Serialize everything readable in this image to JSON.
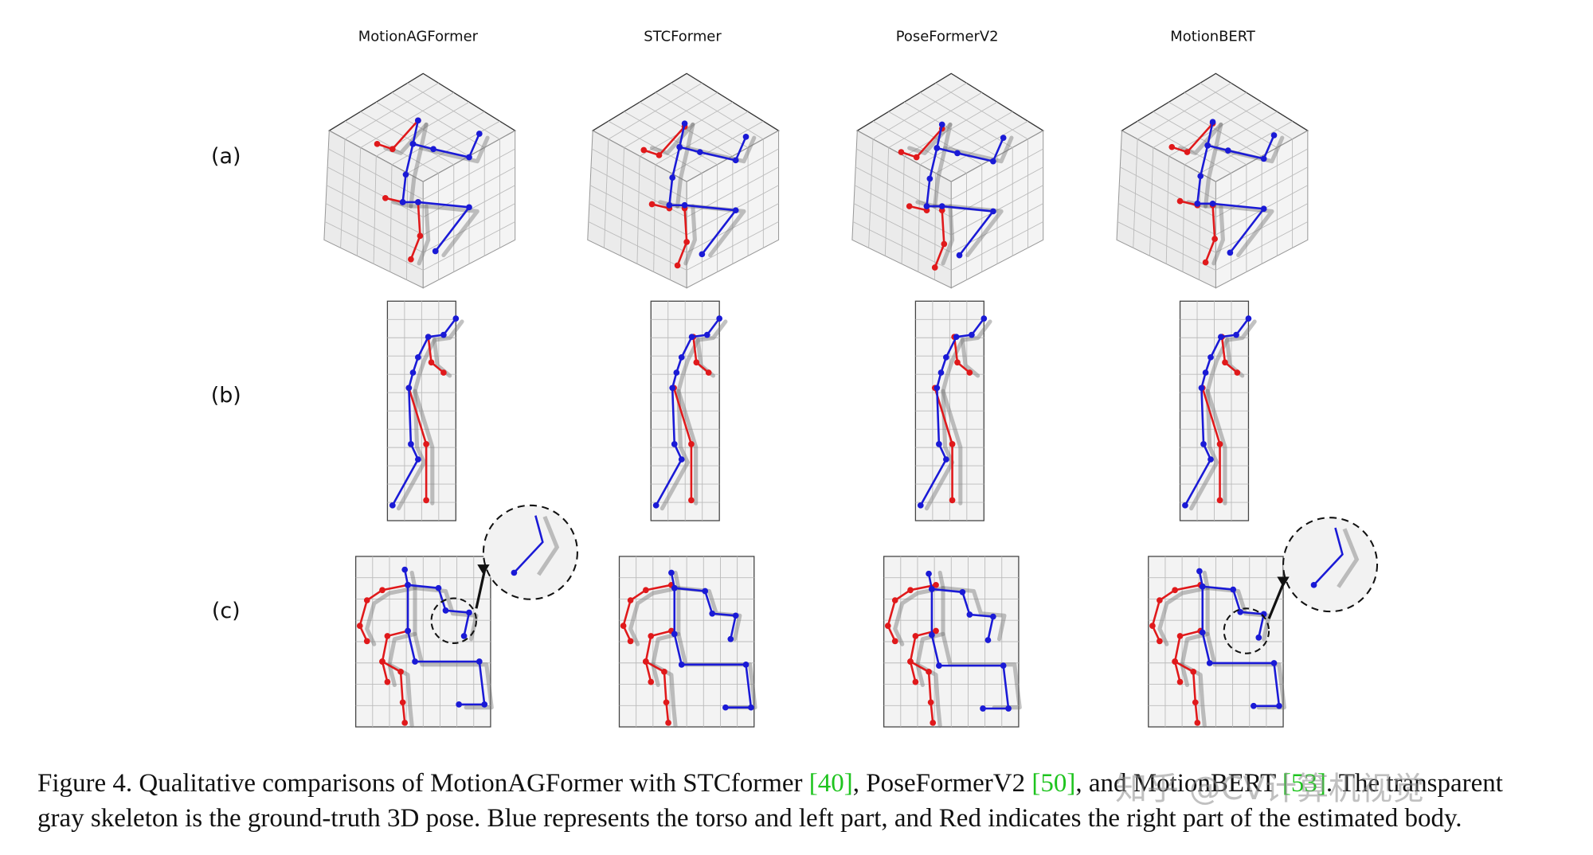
{
  "figure": {
    "columns": [
      "MotionAGFormer",
      "STCFormer",
      "PoseFormerV2",
      "MotionBERT"
    ],
    "rows": [
      "(a)",
      "(b)",
      "(c)"
    ],
    "caption": {
      "line1": [
        "Figure 4. Qualitative comparisons of MotionAGFormer with STCformer ",
        "[40]",
        ", PoseFormerV2 ",
        "[50]",
        ", and MotionBERT ",
        "[53]",
        ". The transparent"
      ],
      "line2": "gray skeleton is the ground-truth 3D pose. Blue represents the torso and left part, and Red indicates the right part of the estimated body."
    },
    "watermark": "知乎 @CV计算机视觉"
  }
}
